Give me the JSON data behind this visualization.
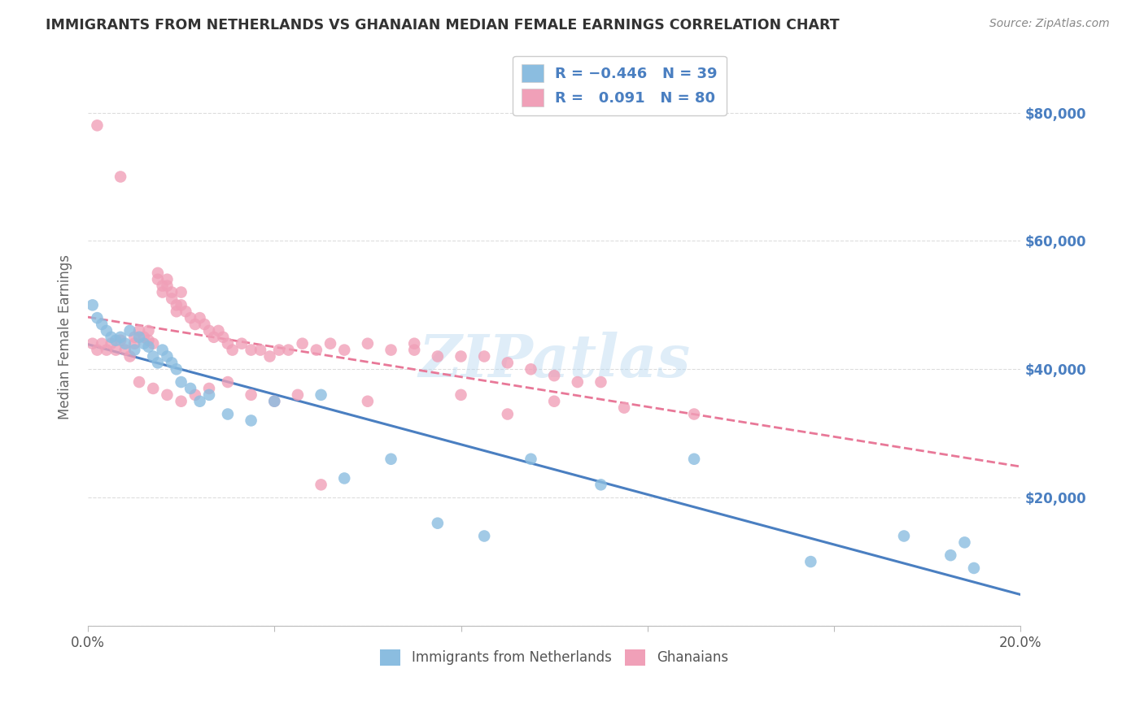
{
  "title": "IMMIGRANTS FROM NETHERLANDS VS GHANAIAN MEDIAN FEMALE EARNINGS CORRELATION CHART",
  "source": "Source: ZipAtlas.com",
  "ylabel": "Median Female Earnings",
  "xlim": [
    0.0,
    0.2
  ],
  "ylim": [
    0,
    90000
  ],
  "yticks": [
    0,
    20000,
    40000,
    60000,
    80000
  ],
  "xticks": [
    0.0,
    0.04,
    0.08,
    0.12,
    0.16,
    0.2
  ],
  "xtick_labels": [
    "0.0%",
    "",
    "",
    "",
    "",
    "20.0%"
  ],
  "ytick_labels_right": [
    "",
    "$20,000",
    "$40,000",
    "$60,000",
    "$80,000"
  ],
  "blue_color": "#8BBDE0",
  "pink_color": "#F0A0B8",
  "blue_line_color": "#4A7FC1",
  "pink_line_color": "#E87898",
  "grid_color": "#DDDDDD",
  "watermark": "ZIPatlas",
  "blue_x": [
    0.001,
    0.002,
    0.003,
    0.004,
    0.005,
    0.006,
    0.007,
    0.008,
    0.009,
    0.01,
    0.011,
    0.012,
    0.013,
    0.014,
    0.015,
    0.016,
    0.017,
    0.018,
    0.019,
    0.02,
    0.022,
    0.024,
    0.026,
    0.03,
    0.035,
    0.04,
    0.05,
    0.055,
    0.065,
    0.075,
    0.085,
    0.095,
    0.11,
    0.13,
    0.155,
    0.175,
    0.185,
    0.188,
    0.19
  ],
  "blue_y": [
    50000,
    48000,
    47000,
    46000,
    45000,
    44500,
    45000,
    44000,
    46000,
    43000,
    45000,
    44000,
    43500,
    42000,
    41000,
    43000,
    42000,
    41000,
    40000,
    38000,
    37000,
    35000,
    36000,
    33000,
    32000,
    35000,
    36000,
    23000,
    26000,
    16000,
    14000,
    26000,
    22000,
    26000,
    10000,
    14000,
    11000,
    13000,
    9000
  ],
  "pink_x": [
    0.001,
    0.002,
    0.003,
    0.004,
    0.005,
    0.006,
    0.007,
    0.008,
    0.009,
    0.01,
    0.01,
    0.011,
    0.012,
    0.013,
    0.013,
    0.014,
    0.015,
    0.015,
    0.016,
    0.016,
    0.017,
    0.017,
    0.018,
    0.018,
    0.019,
    0.019,
    0.02,
    0.02,
    0.021,
    0.022,
    0.023,
    0.024,
    0.025,
    0.026,
    0.027,
    0.028,
    0.029,
    0.03,
    0.031,
    0.033,
    0.035,
    0.037,
    0.039,
    0.041,
    0.043,
    0.046,
    0.049,
    0.052,
    0.055,
    0.06,
    0.065,
    0.07,
    0.075,
    0.08,
    0.085,
    0.09,
    0.095,
    0.1,
    0.105,
    0.11,
    0.002,
    0.007,
    0.011,
    0.014,
    0.017,
    0.02,
    0.023,
    0.026,
    0.03,
    0.035,
    0.04,
    0.045,
    0.05,
    0.06,
    0.07,
    0.08,
    0.09,
    0.1,
    0.115,
    0.13
  ],
  "pink_y": [
    44000,
    43000,
    44000,
    43000,
    44000,
    43000,
    44500,
    43000,
    42000,
    44000,
    45000,
    46000,
    45000,
    46000,
    44500,
    44000,
    54000,
    55000,
    53000,
    52000,
    54000,
    53000,
    52000,
    51000,
    50000,
    49000,
    52000,
    50000,
    49000,
    48000,
    47000,
    48000,
    47000,
    46000,
    45000,
    46000,
    45000,
    44000,
    43000,
    44000,
    43000,
    43000,
    42000,
    43000,
    43000,
    44000,
    43000,
    44000,
    43000,
    44000,
    43000,
    43000,
    42000,
    42000,
    42000,
    41000,
    40000,
    39000,
    38000,
    38000,
    78000,
    70000,
    38000,
    37000,
    36000,
    35000,
    36000,
    37000,
    38000,
    36000,
    35000,
    36000,
    22000,
    35000,
    44000,
    36000,
    33000,
    35000,
    34000,
    33000
  ]
}
